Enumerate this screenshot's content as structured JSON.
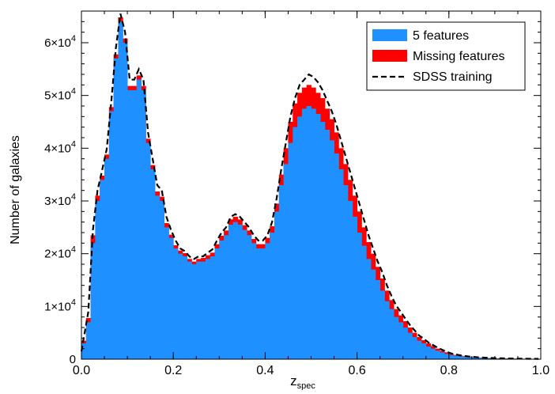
{
  "chart_data": {
    "type": "histogram",
    "xlabel": "z",
    "xlabel_sub": "spec",
    "ylabel": "Number of galaxies",
    "xlim": [
      0.0,
      1.0
    ],
    "ylim": [
      0,
      66000
    ],
    "bin_width": 0.01,
    "x_ticks": [
      {
        "value": 0.0,
        "label": "0.0"
      },
      {
        "value": 0.2,
        "label": "0.2"
      },
      {
        "value": 0.4,
        "label": "0.4"
      },
      {
        "value": 0.6,
        "label": "0.6"
      },
      {
        "value": 0.8,
        "label": "0.8"
      },
      {
        "value": 1.0,
        "label": "1.0"
      }
    ],
    "y_ticks": [
      {
        "value": 0,
        "label": "0",
        "exp": ""
      },
      {
        "value": 10000,
        "label": "1×10",
        "exp": "4"
      },
      {
        "value": 20000,
        "label": "2×10",
        "exp": "4"
      },
      {
        "value": 30000,
        "label": "3×10",
        "exp": "4"
      },
      {
        "value": 40000,
        "label": "4×10",
        "exp": "4"
      },
      {
        "value": 50000,
        "label": "5×10",
        "exp": "4"
      },
      {
        "value": 60000,
        "label": "6×10",
        "exp": "4"
      }
    ],
    "legend": {
      "placement": "top-right",
      "entries": [
        {
          "label": "5 features",
          "color": "#1e90ff",
          "style": "patch"
        },
        {
          "label": "Missing features",
          "color": "#ff0000",
          "style": "patch"
        },
        {
          "label": "SDSS training",
          "color": "#000000",
          "style": "dashed"
        }
      ]
    },
    "series": [
      {
        "name": "5 features",
        "color": "#1e90ff",
        "bin_start": 0.0,
        "values": [
          3000,
          7000,
          22000,
          30000,
          34000,
          38000,
          47000,
          57000,
          64000,
          60000,
          51000,
          51000,
          53000,
          51000,
          41000,
          36000,
          31000,
          30000,
          25000,
          23000,
          21000,
          20000,
          19500,
          18500,
          18000,
          18500,
          18500,
          19000,
          19500,
          21000,
          22500,
          23500,
          25500,
          26000,
          25500,
          24500,
          23500,
          22000,
          21000,
          21000,
          22000,
          24000,
          28000,
          33000,
          37000,
          41000,
          44000,
          46000,
          47500,
          48000,
          47500,
          46500,
          45000,
          43500,
          41500,
          39000,
          36000,
          33000,
          30000,
          27000,
          24000,
          21500,
          19000,
          17000,
          15000,
          13000,
          11000,
          9500,
          8000,
          7000,
          6000,
          5000,
          4200,
          3500,
          3000,
          2400,
          2000,
          1600,
          1300,
          1000,
          800,
          650,
          550,
          450,
          380,
          320,
          280,
          240,
          200,
          170,
          150,
          130,
          110,
          100,
          90,
          80,
          70,
          60,
          50,
          40
        ]
      },
      {
        "name": "Missing features",
        "color": "#ff0000",
        "bin_start": 0.0,
        "values": [
          3500,
          7800,
          23500,
          31000,
          34800,
          38800,
          47800,
          57800,
          64800,
          60800,
          51800,
          51800,
          53800,
          51800,
          41800,
          36800,
          31800,
          30800,
          25800,
          23600,
          21600,
          20600,
          20100,
          19000,
          18500,
          19000,
          19200,
          19700,
          20200,
          21800,
          23400,
          24400,
          26500,
          27000,
          26500,
          25400,
          24400,
          22800,
          21800,
          21800,
          23000,
          25200,
          29500,
          35000,
          40000,
          45000,
          48500,
          50500,
          51500,
          52000,
          51500,
          50500,
          49500,
          47500,
          45500,
          43000,
          40000,
          37000,
          34000,
          31000,
          28000,
          25000,
          22200,
          20000,
          17500,
          15300,
          13000,
          11200,
          9500,
          8300,
          7200,
          6000,
          5000,
          4200,
          3600,
          3000,
          2500,
          2000,
          1600,
          1300,
          1000,
          800,
          680,
          560,
          460,
          380,
          320,
          270,
          230,
          200,
          170,
          150,
          130,
          115,
          100,
          90,
          80,
          70,
          60,
          50
        ]
      },
      {
        "name": "SDSS training",
        "color": "#000000",
        "style": "dashed",
        "x": [
          0.0,
          0.005,
          0.015,
          0.025,
          0.035,
          0.045,
          0.055,
          0.065,
          0.075,
          0.085,
          0.095,
          0.105,
          0.115,
          0.125,
          0.135,
          0.145,
          0.155,
          0.165,
          0.175,
          0.185,
          0.195,
          0.205,
          0.215,
          0.225,
          0.235,
          0.245,
          0.255,
          0.265,
          0.275,
          0.285,
          0.295,
          0.305,
          0.315,
          0.325,
          0.335,
          0.345,
          0.355,
          0.365,
          0.375,
          0.385,
          0.395,
          0.405,
          0.415,
          0.425,
          0.435,
          0.445,
          0.455,
          0.465,
          0.475,
          0.485,
          0.495,
          0.505,
          0.515,
          0.525,
          0.535,
          0.545,
          0.555,
          0.565,
          0.575,
          0.585,
          0.595,
          0.605,
          0.615,
          0.625,
          0.635,
          0.645,
          0.655,
          0.665,
          0.675,
          0.685,
          0.695,
          0.705,
          0.715,
          0.725,
          0.735,
          0.745,
          0.755,
          0.765,
          0.775,
          0.785,
          0.795,
          0.805,
          0.815,
          0.825,
          0.835,
          0.845,
          0.855,
          0.865,
          0.875,
          0.885,
          0.895,
          0.905,
          0.915,
          0.925,
          0.935,
          0.945,
          0.955,
          0.965,
          0.975,
          0.985,
          0.995
        ],
        "values": [
          1500,
          4000,
          9000,
          24500,
          32000,
          35800,
          39800,
          48800,
          59000,
          65500,
          62000,
          53000,
          53000,
          55000,
          53000,
          43000,
          38000,
          33000,
          32000,
          27000,
          24500,
          22500,
          21000,
          20500,
          19500,
          19000,
          19500,
          19500,
          20200,
          20800,
          22500,
          24000,
          25000,
          27000,
          27500,
          27000,
          26000,
          25000,
          23500,
          22500,
          22500,
          23500,
          26000,
          30500,
          36000,
          41000,
          46000,
          49500,
          52000,
          53000,
          54000,
          53500,
          52500,
          51000,
          49000,
          47000,
          44500,
          41500,
          38500,
          35500,
          32500,
          29500,
          26500,
          23500,
          21000,
          18500,
          16500,
          14000,
          12000,
          10200,
          9000,
          7700,
          6500,
          5500,
          4500,
          3900,
          3200,
          2700,
          2200,
          1800,
          1400,
          1100,
          900,
          730,
          600,
          500,
          420,
          350,
          300,
          260,
          220,
          190,
          170,
          150,
          130,
          115,
          100,
          90,
          80,
          70,
          60
        ]
      }
    ]
  }
}
